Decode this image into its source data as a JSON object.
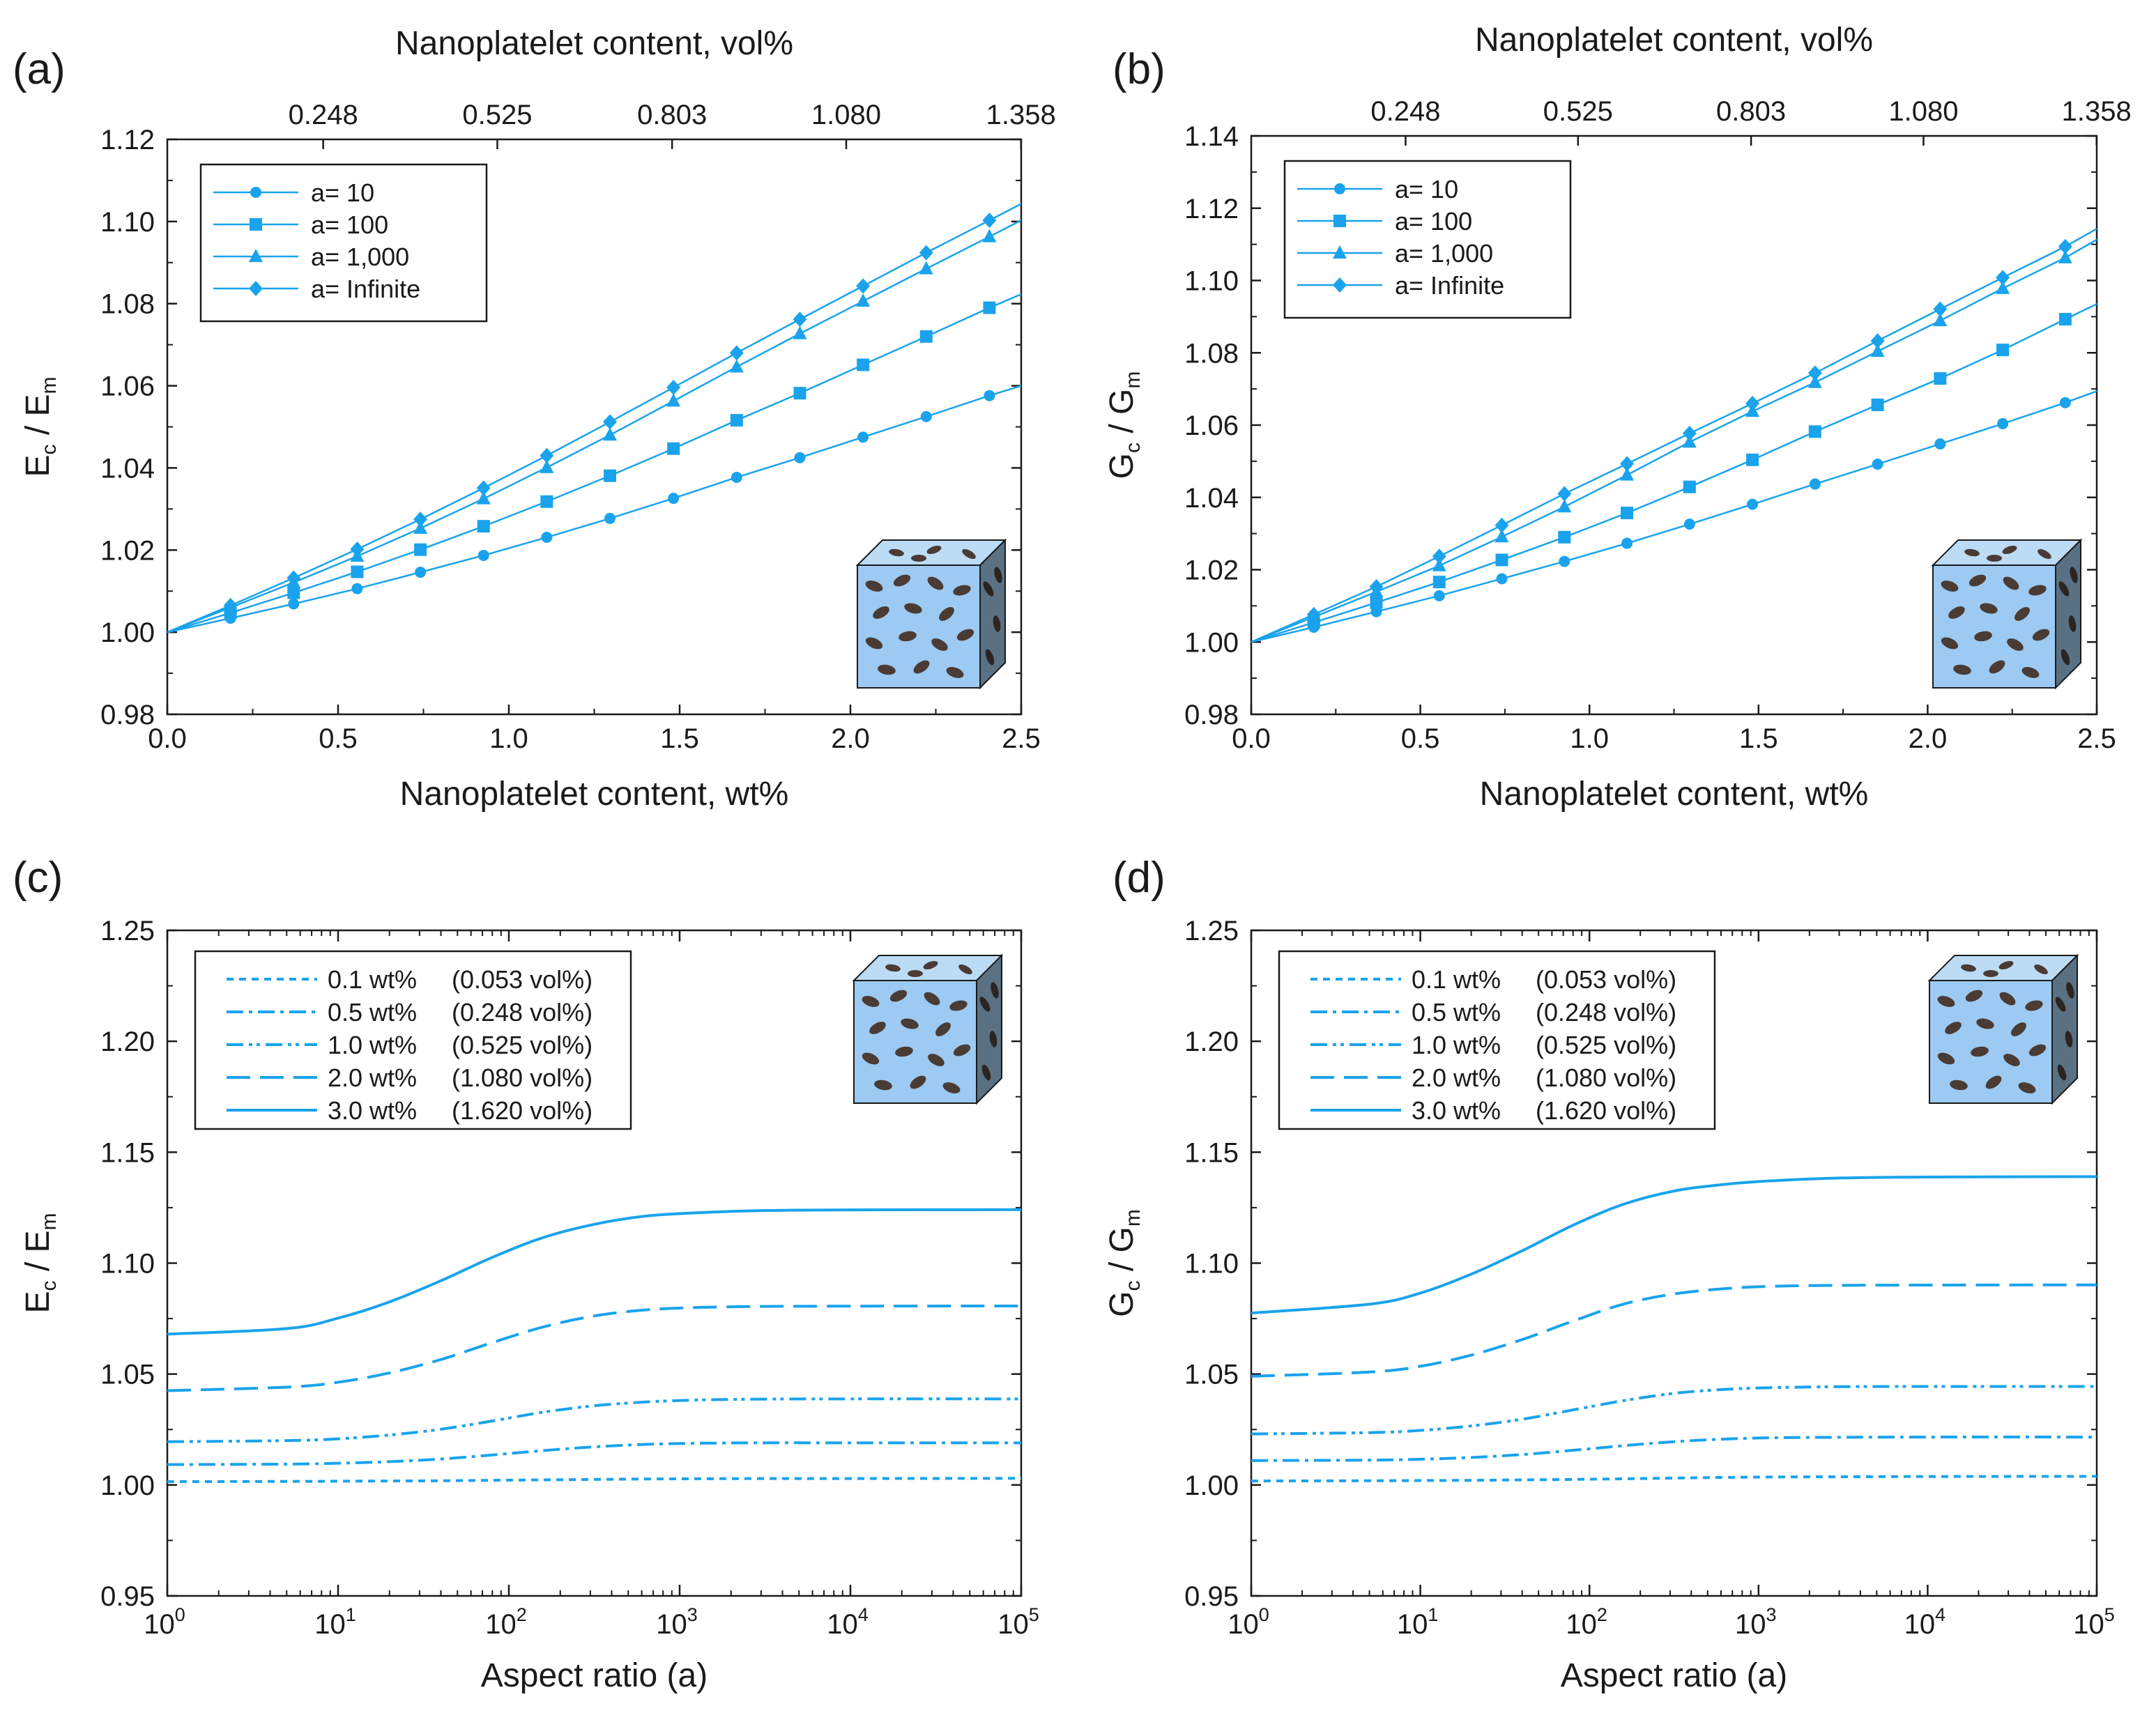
{
  "colors": {
    "series": "#1aa3ec",
    "axis": "#1a1a1a",
    "cube_front": "#9ccaf2",
    "cube_top": "#bcdcf6",
    "cube_side": "#5a7184",
    "platelet": "#4a3b35"
  },
  "chart_data": [
    {
      "id": "a",
      "panel_label": "(a)",
      "type": "line",
      "ylabel": {
        "main": "E",
        "sub1": "c",
        "sep": " / E",
        "sub2": "m"
      },
      "xlabel": "Nanoplatelet content, wt%",
      "x2label": "Nanoplatelet content, vol%",
      "xscale": "linear",
      "xlim": [
        0,
        2.5
      ],
      "ylim": [
        0.98,
        1.12
      ],
      "xticks": [
        0,
        0.5,
        1.0,
        1.5,
        2.0,
        2.5
      ],
      "xtick_labels": [
        "0.0",
        "0.5",
        "1.0",
        "1.5",
        "2.0",
        "2.5"
      ],
      "yticks": [
        0.98,
        1.0,
        1.02,
        1.04,
        1.06,
        1.08,
        1.1,
        1.12
      ],
      "ytick_labels": [
        "0.98",
        "1.00",
        "1.02",
        "1.04",
        "1.06",
        "1.08",
        "1.10",
        "1.12"
      ],
      "x2ticks": [
        0.248,
        0.525,
        0.803,
        1.08,
        1.358
      ],
      "x2tick_labels": [
        "0.248",
        "0.525",
        "0.803",
        "1.080",
        "1.358"
      ],
      "x2_to_x_factor": 1.8405,
      "inset_cube": "bottom-right",
      "legend": "top-left",
      "x": [
        0,
        0.185,
        0.37,
        0.556,
        0.741,
        0.926,
        1.111,
        1.296,
        1.482,
        1.667,
        1.852,
        2.037,
        2.222,
        2.407,
        2.5
      ],
      "series": [
        {
          "name": "a= 10",
          "marker": "circle",
          "end_slope": 0.0254,
          "values": [
            1.0,
            1.0034,
            1.0069,
            1.0106,
            1.0146,
            1.0187,
            1.0231,
            1.0277,
            1.0326,
            1.0377,
            1.0425,
            1.0475,
            1.0525,
            1.0576,
            1.06
          ]
        },
        {
          "name": "a= 100",
          "marker": "square",
          "end_slope": 0.035,
          "values": [
            1.0,
            1.0047,
            1.0096,
            1.0147,
            1.0201,
            1.0258,
            1.0318,
            1.0381,
            1.0447,
            1.0516,
            1.0582,
            1.0651,
            1.072,
            1.079,
            1.0823
          ]
        },
        {
          "name": "a= 1,000",
          "marker": "triangle",
          "end_slope": 0.0429,
          "values": [
            1.0,
            1.006,
            1.0121,
            1.0185,
            1.0253,
            1.0325,
            1.0401,
            1.048,
            1.0563,
            1.0646,
            1.0727,
            1.0806,
            1.0885,
            1.0963,
            1.1003
          ]
        },
        {
          "name": "a= Infinite",
          "marker": "diamond",
          "end_slope": 0.0434,
          "values": [
            1.0,
            1.0065,
            1.0132,
            1.0202,
            1.0275,
            1.0351,
            1.043,
            1.0512,
            1.0596,
            1.068,
            1.0762,
            1.0843,
            1.0924,
            1.1003,
            1.1043
          ]
        }
      ]
    },
    {
      "id": "b",
      "panel_label": "(b)",
      "type": "line",
      "ylabel": {
        "main": "G",
        "sub1": "c",
        "sep": " / G",
        "sub2": "m"
      },
      "xlabel": "Nanoplatelet content, wt%",
      "x2label": "Nanoplatelet content, vol%",
      "xscale": "linear",
      "xlim": [
        0,
        2.5
      ],
      "ylim": [
        0.98,
        1.14
      ],
      "xticks": [
        0,
        0.5,
        1.0,
        1.5,
        2.0,
        2.5
      ],
      "xtick_labels": [
        "0.0",
        "0.5",
        "1.0",
        "1.5",
        "2.0",
        "2.5"
      ],
      "yticks": [
        0.98,
        1.0,
        1.02,
        1.04,
        1.06,
        1.08,
        1.1,
        1.12,
        1.14
      ],
      "ytick_labels": [
        "0.98",
        "1.00",
        "1.02",
        "1.04",
        "1.06",
        "1.08",
        "1.10",
        "1.12",
        "1.14"
      ],
      "x2ticks": [
        0.248,
        0.525,
        0.803,
        1.08,
        1.358
      ],
      "x2tick_labels": [
        "0.248",
        "0.525",
        "0.803",
        "1.080",
        "1.358"
      ],
      "x2_to_x_factor": 1.8405,
      "inset_cube": "bottom-right",
      "legend": "top-left",
      "x": [
        0,
        0.185,
        0.37,
        0.556,
        0.741,
        0.926,
        1.111,
        1.296,
        1.482,
        1.667,
        1.852,
        2.037,
        2.222,
        2.407,
        2.5
      ],
      "series": [
        {
          "name": "a= 10",
          "marker": "circle",
          "end_slope": 0.0345,
          "values": [
            1.0,
            1.0041,
            1.0084,
            1.0128,
            1.0175,
            1.0223,
            1.0273,
            1.0326,
            1.0381,
            1.0437,
            1.0492,
            1.0548,
            1.0604,
            1.0662,
            1.0694
          ]
        },
        {
          "name": "a= 100",
          "marker": "square",
          "end_slope": 0.0457,
          "values": [
            1.0,
            1.0054,
            1.0109,
            1.0166,
            1.0227,
            1.029,
            1.0357,
            1.0429,
            1.0504,
            1.0582,
            1.0656,
            1.0729,
            1.0808,
            1.0893,
            1.0935
          ]
        },
        {
          "name": "a= 1,000",
          "marker": "triangle",
          "end_slope": 0.0532,
          "values": [
            1.0,
            1.0069,
            1.0139,
            1.0211,
            1.0291,
            1.0374,
            1.0462,
            1.0553,
            1.0638,
            1.0718,
            1.0804,
            1.0889,
            1.0978,
            1.1063,
            1.1113
          ]
        },
        {
          "name": "a= Infinite",
          "marker": "diamond",
          "end_slope": 0.0537,
          "values": [
            1.0,
            1.0076,
            1.0153,
            1.0237,
            1.0323,
            1.041,
            1.0493,
            1.0577,
            1.066,
            1.0744,
            1.0833,
            1.0921,
            1.1008,
            1.1094,
            1.1143
          ]
        }
      ]
    },
    {
      "id": "c",
      "panel_label": "(c)",
      "type": "line",
      "ylabel": {
        "main": "E",
        "sub1": "c",
        "sep": " / E",
        "sub2": "m"
      },
      "xlabel": "Aspect ratio (a)",
      "xscale": "log",
      "xlim_exp": [
        0,
        5
      ],
      "ylim": [
        0.95,
        1.25
      ],
      "xtick_exps": [
        0,
        1,
        2,
        3,
        4,
        5
      ],
      "xtick_base": "10",
      "xtick_labels": [
        "0",
        "1",
        "2",
        "3",
        "4",
        "5"
      ],
      "yticks": [
        0.95,
        1.0,
        1.05,
        1.1,
        1.15,
        1.2,
        1.25
      ],
      "ytick_labels": [
        "0.95",
        "1.00",
        "1.05",
        "1.10",
        "1.15",
        "1.20",
        "1.25"
      ],
      "inset_cube": "top-right",
      "legend": "top-left",
      "x_exp": [
        0,
        0.7,
        1,
        1.3,
        1.6,
        1.9,
        2.2,
        2.5,
        2.8,
        3.1,
        3.5,
        4,
        5
      ],
      "series": [
        {
          "name": "0.1 wt%",
          "vol": "(0.053 vol%)",
          "dash": "10,8",
          "values": [
            1.0015,
            1.0016,
            1.0017,
            1.0018,
            1.0019,
            1.0021,
            1.0023,
            1.0025,
            1.0027,
            1.0028,
            1.0029,
            1.0029,
            1.003
          ]
        },
        {
          "name": "0.5 wt%",
          "vol": "(0.248 vol%)",
          "dash": "24,8,5,8",
          "values": [
            1.0092,
            1.0094,
            1.0098,
            1.0105,
            1.0117,
            1.0135,
            1.0155,
            1.0172,
            1.0183,
            1.0188,
            1.019,
            1.019,
            1.019
          ]
        },
        {
          "name": "1.0 wt%",
          "vol": "(0.525 vol%)",
          "dash": "24,8,5,6,5,8",
          "values": [
            1.0195,
            1.02,
            1.0208,
            1.0225,
            1.0251,
            1.0288,
            1.0328,
            1.0357,
            1.0374,
            1.0383,
            1.0387,
            1.0388,
            1.0388
          ]
        },
        {
          "name": "2.0 wt%",
          "vol": "(1.080 vol%)",
          "dash": "34,14",
          "values": [
            1.0425,
            1.0441,
            1.0463,
            1.0505,
            1.0565,
            1.0641,
            1.0712,
            1.0762,
            1.0789,
            1.08,
            1.0805,
            1.0806,
            1.0807
          ]
        },
        {
          "name": "3.0 wt%",
          "vol": "(1.620 vol%)",
          "dash": "",
          "values": [
            1.068,
            1.0705,
            1.0752,
            1.0825,
            1.092,
            1.1025,
            1.1115,
            1.1175,
            1.1212,
            1.1227,
            1.1237,
            1.124,
            1.1241
          ]
        }
      ]
    },
    {
      "id": "d",
      "panel_label": "(d)",
      "type": "line",
      "ylabel": {
        "main": "G",
        "sub1": "c",
        "sep": " / G",
        "sub2": "m"
      },
      "xlabel": "Aspect ratio (a)",
      "xscale": "log",
      "xlim_exp": [
        0,
        5
      ],
      "ylim": [
        0.95,
        1.25
      ],
      "xtick_exps": [
        0,
        1,
        2,
        3,
        4,
        5
      ],
      "xtick_base": "10",
      "xtick_labels": [
        "0",
        "1",
        "2",
        "3",
        "4",
        "5"
      ],
      "yticks": [
        0.95,
        1.0,
        1.05,
        1.1,
        1.15,
        1.2,
        1.25
      ],
      "ytick_labels": [
        "0.95",
        "1.00",
        "1.05",
        "1.10",
        "1.15",
        "1.20",
        "1.25"
      ],
      "inset_cube": "top-right",
      "legend": "top-left",
      "x_exp": [
        0,
        0.7,
        1,
        1.3,
        1.6,
        1.9,
        2.2,
        2.5,
        2.8,
        3.1,
        3.5,
        4,
        5
      ],
      "series": [
        {
          "name": "0.1 wt%",
          "vol": "(0.053 vol%)",
          "dash": "10,8",
          "values": [
            1.0018,
            1.0019,
            1.002,
            1.0021,
            1.0023,
            1.0025,
            1.0028,
            1.0031,
            1.0034,
            1.0036,
            1.0037,
            1.0038,
            1.0039
          ]
        },
        {
          "name": "0.5 wt%",
          "vol": "(0.248 vol%)",
          "dash": "24,8,5,8",
          "values": [
            1.011,
            1.0112,
            1.0116,
            1.0124,
            1.0137,
            1.0156,
            1.0177,
            1.0195,
            1.0207,
            1.0213,
            1.0215,
            1.0216,
            1.0216
          ]
        },
        {
          "name": "1.0 wt%",
          "vol": "(0.525 vol%)",
          "dash": "24,8,5,6,5,8",
          "values": [
            1.023,
            1.0236,
            1.0246,
            1.0266,
            1.0296,
            1.0338,
            1.038,
            1.0413,
            1.0431,
            1.0439,
            1.0443,
            1.0444,
            1.0444
          ]
        },
        {
          "name": "2.0 wt%",
          "vol": "(1.080 vol%)",
          "dash": "34,14",
          "values": [
            1.049,
            1.0509,
            1.0535,
            1.0585,
            1.0655,
            1.0738,
            1.0815,
            1.0861,
            1.0885,
            1.0896,
            1.09,
            1.0901,
            1.0902
          ]
        },
        {
          "name": "3.0 wt%",
          "vol": "(1.620 vol%)",
          "dash": "",
          "values": [
            1.0775,
            1.0815,
            1.0865,
            1.095,
            1.1055,
            1.117,
            1.1265,
            1.1325,
            1.1355,
            1.1372,
            1.1384,
            1.1388,
            1.139
          ]
        }
      ]
    }
  ]
}
